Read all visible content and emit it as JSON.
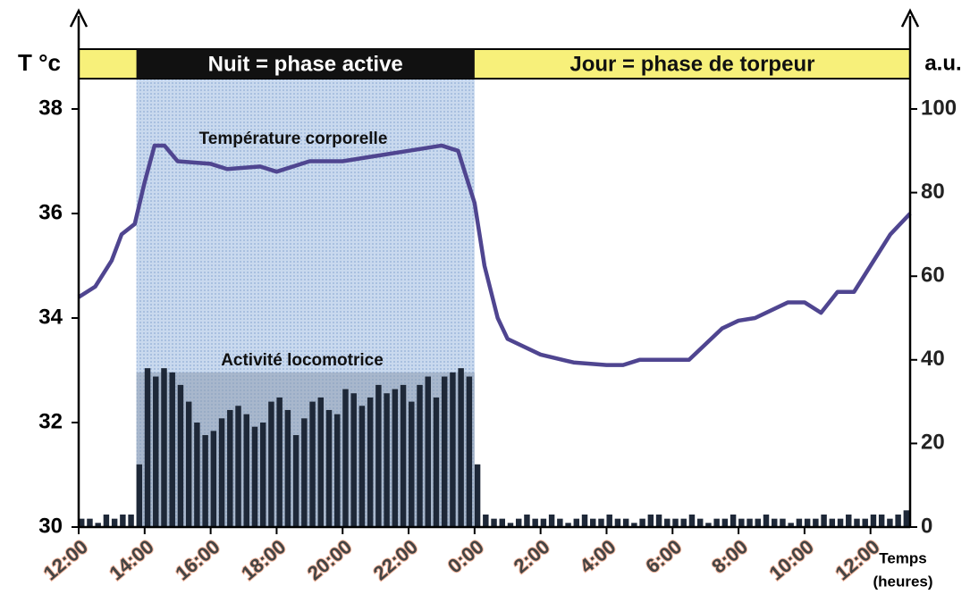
{
  "chart_data": {
    "type": "line",
    "y_label": "T °c",
    "y2_label": "a.u.",
    "x_label": [
      "Temps",
      "(heures)"
    ],
    "night": {
      "label": "Nuit = phase active",
      "start": 13.75,
      "end": 24
    },
    "day": {
      "label": "Jour = phase de torpeur"
    },
    "xlim": [
      12,
      37.2
    ],
    "xticks": [
      {
        "value": 12,
        "label": "12:00"
      },
      {
        "value": 14,
        "label": "14:00"
      },
      {
        "value": 16,
        "label": "16:00"
      },
      {
        "value": 18,
        "label": "18:00"
      },
      {
        "value": 20,
        "label": "20:00"
      },
      {
        "value": 22,
        "label": "22:00"
      },
      {
        "value": 24,
        "label": "0:00"
      },
      {
        "value": 26,
        "label": "2:00"
      },
      {
        "value": 28,
        "label": "4:00"
      },
      {
        "value": 30,
        "label": "6:00"
      },
      {
        "value": 32,
        "label": "8:00"
      },
      {
        "value": 34,
        "label": "10:00"
      },
      {
        "value": 36,
        "label": "12:00"
      }
    ],
    "ylim": [
      30,
      38
    ],
    "yticks": [
      30,
      32,
      34,
      36,
      38
    ],
    "y2lim": [
      0,
      100
    ],
    "y2ticks": [
      0,
      20,
      40,
      60,
      80,
      100
    ],
    "series": [
      {
        "name": "Température corporelle",
        "color": "#4f4590",
        "x": [
          12,
          12.5,
          13,
          13.3,
          13.7,
          14,
          14.3,
          14.6,
          15,
          16,
          16.5,
          17.5,
          18,
          19,
          20,
          21,
          22,
          23,
          23.5,
          24,
          24.3,
          24.7,
          25,
          26,
          27,
          28,
          28.5,
          29,
          30,
          30.5,
          31,
          31.5,
          32,
          32.5,
          33.5,
          34,
          34.5,
          35,
          35.5,
          36,
          36.6,
          37.2
        ],
        "values": [
          34.4,
          34.6,
          35.1,
          35.6,
          35.8,
          36.6,
          37.3,
          37.3,
          37.0,
          36.95,
          36.85,
          36.9,
          36.8,
          37.0,
          37.0,
          37.1,
          37.2,
          37.3,
          37.2,
          36.2,
          35.0,
          34.0,
          33.6,
          33.3,
          33.15,
          33.1,
          33.1,
          33.2,
          33.2,
          33.2,
          33.5,
          33.8,
          33.95,
          34.0,
          34.3,
          34.3,
          34.1,
          34.5,
          34.5,
          35.0,
          35.6,
          36.0
        ]
      },
      {
        "name": "Activité locomotrice",
        "color": "#1e2838",
        "axis": "y2",
        "x": [
          12,
          12.25,
          12.5,
          12.75,
          13,
          13.25,
          13.5,
          13.75,
          14,
          14.25,
          14.5,
          14.75,
          15,
          15.25,
          15.5,
          15.75,
          16,
          16.25,
          16.5,
          16.75,
          17,
          17.25,
          17.5,
          17.75,
          18,
          18.25,
          18.5,
          18.75,
          19,
          19.25,
          19.5,
          19.75,
          20,
          20.25,
          20.5,
          20.75,
          21,
          21.25,
          21.5,
          21.75,
          22,
          22.25,
          22.5,
          22.75,
          23,
          23.25,
          23.5,
          23.75,
          24,
          24.25,
          24.5,
          24.75,
          25,
          25.25,
          25.5,
          25.75,
          26,
          26.25,
          26.5,
          26.75,
          27,
          27.25,
          27.5,
          27.75,
          28,
          28.25,
          28.5,
          28.75,
          29,
          29.25,
          29.5,
          29.75,
          30,
          30.25,
          30.5,
          30.75,
          31,
          31.25,
          31.5,
          31.75,
          32,
          32.25,
          32.5,
          32.75,
          33,
          33.25,
          33.5,
          33.75,
          34,
          34.25,
          34.5,
          34.75,
          35,
          35.25,
          35.5,
          35.75,
          36,
          36.25,
          36.5,
          36.75,
          37
        ],
        "values": [
          2,
          2,
          1,
          3,
          2,
          3,
          3,
          15,
          38,
          36,
          38,
          37,
          34,
          30,
          25,
          22,
          23,
          26,
          28,
          29,
          27,
          24,
          25,
          30,
          31,
          28,
          22,
          26,
          30,
          31,
          28,
          27,
          33,
          32,
          29,
          31,
          34,
          32,
          33,
          34,
          30,
          34,
          36,
          31,
          36,
          37,
          38,
          36,
          15,
          3,
          2,
          2,
          1,
          2,
          3,
          2,
          2,
          3,
          2,
          1,
          2,
          3,
          2,
          2,
          3,
          2,
          2,
          1,
          2,
          3,
          3,
          2,
          2,
          2,
          3,
          2,
          1,
          2,
          2,
          3,
          2,
          2,
          2,
          3,
          2,
          2,
          1,
          2,
          2,
          2,
          3,
          2,
          2,
          3,
          2,
          2,
          3,
          3,
          2,
          3,
          4
        ]
      }
    ]
  }
}
